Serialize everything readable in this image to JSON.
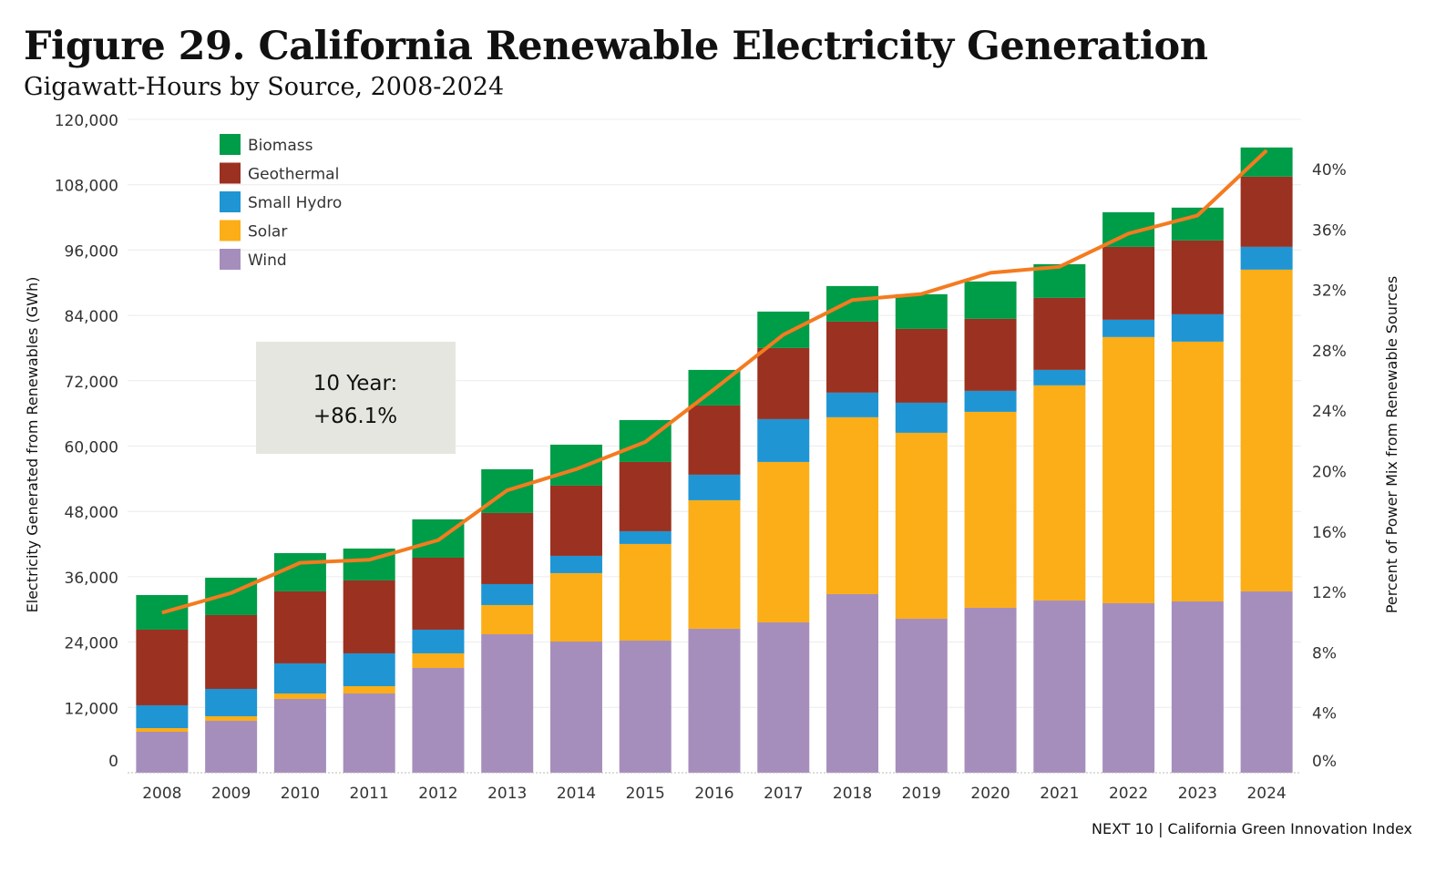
{
  "title": "Figure 29. California Renewable Electricity Generation",
  "subtitle": "Gigawatt-Hours by Source, 2008-2024",
  "footer": "NEXT 10 | California Green Innovation Index",
  "annotation": {
    "line1": "10 Year:",
    "line2": "+86.1%"
  },
  "chart_data": {
    "type": "bar",
    "stacked": true,
    "categories": [
      "2008",
      "2009",
      "2010",
      "2011",
      "2012",
      "2013",
      "2014",
      "2015",
      "2016",
      "2017",
      "2018",
      "2019",
      "2020",
      "2021",
      "2022",
      "2023",
      "2024"
    ],
    "ylabel": "Electricity Generated from Renewables (GWh)",
    "y2label": "Percent of Power Mix from Renewable Sources",
    "ylim": [
      0,
      120000
    ],
    "yticks": [
      0,
      12000,
      24000,
      36000,
      48000,
      60000,
      72000,
      84000,
      96000,
      108000,
      120000
    ],
    "ytick_labels": [
      "0",
      "12,000",
      "24,000",
      "36,000",
      "48,000",
      "60,000",
      "72,000",
      "84,000",
      "96,000",
      "108,000",
      "120,000"
    ],
    "y2lim": [
      0,
      40
    ],
    "y2ticks": [
      0,
      4,
      8,
      12,
      16,
      20,
      24,
      28,
      32,
      36,
      40
    ],
    "y2tick_labels": [
      "0%",
      "4%",
      "8%",
      "12%",
      "16%",
      "20%",
      "24%",
      "28%",
      "32%",
      "36%",
      "40%"
    ],
    "grid": true,
    "legend_position": "top-left",
    "series": [
      {
        "name": "Wind",
        "color": "#A68EBC",
        "values": [
          7530,
          9540,
          13560,
          14560,
          19250,
          25440,
          24100,
          24270,
          26450,
          27620,
          32810,
          28290,
          30300,
          31640,
          31140,
          31470,
          33310
        ]
      },
      {
        "name": "Solar",
        "color": "#FBAE17",
        "values": [
          670,
          840,
          1000,
          1340,
          2680,
          5360,
          12560,
          17750,
          23600,
          29460,
          32480,
          34150,
          35990,
          39510,
          48880,
          47710,
          59090
        ]
      },
      {
        "name": "Small Hydro",
        "color": "#1F95D3",
        "values": [
          4190,
          5020,
          5530,
          6030,
          4350,
          3850,
          3180,
          2340,
          4690,
          7870,
          4520,
          5520,
          3850,
          2840,
          3180,
          5020,
          4190
        ]
      },
      {
        "name": "Geothermal",
        "color": "#9B3120",
        "values": [
          13890,
          13560,
          13220,
          13390,
          13220,
          13060,
          12890,
          12720,
          12720,
          13060,
          13050,
          13560,
          13230,
          13230,
          13390,
          13560,
          12890
        ]
      },
      {
        "name": "Biomass",
        "color": "#009D48",
        "values": [
          6360,
          6860,
          7030,
          5860,
          7040,
          8030,
          7530,
          7700,
          6530,
          6690,
          6530,
          6370,
          6860,
          6190,
          6360,
          6030,
          5360
        ]
      }
    ],
    "line_series": {
      "axis": "right",
      "unit": "%",
      "color": "#F47B20",
      "values": [
        10.6,
        11.9,
        13.9,
        14.1,
        15.4,
        18.7,
        20.1,
        21.9,
        25.4,
        29.0,
        31.3,
        31.7,
        33.1,
        33.5,
        35.7,
        36.9,
        41.2
      ]
    },
    "legend_order": [
      "Biomass",
      "Geothermal",
      "Small Hydro",
      "Solar",
      "Wind"
    ]
  }
}
